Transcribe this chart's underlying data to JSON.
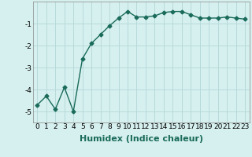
{
  "x": [
    0,
    1,
    2,
    3,
    4,
    5,
    6,
    7,
    8,
    9,
    10,
    11,
    12,
    13,
    14,
    15,
    16,
    17,
    18,
    19,
    20,
    21,
    22,
    23
  ],
  "y": [
    -4.7,
    -4.3,
    -4.9,
    -3.9,
    -5.0,
    -2.6,
    -1.9,
    -1.5,
    -1.1,
    -0.75,
    -0.45,
    -0.7,
    -0.7,
    -0.65,
    -0.5,
    -0.45,
    -0.45,
    -0.6,
    -0.75,
    -0.75,
    -0.75,
    -0.7,
    -0.75,
    -0.8
  ],
  "line_color": "#1a6b5a",
  "marker": "D",
  "marker_size": 2.5,
  "xlabel": "Humidex (Indice chaleur)",
  "xlim": [
    -0.5,
    23.5
  ],
  "ylim": [
    -5.5,
    0.0
  ],
  "yticks": [
    -5,
    -4,
    -3,
    -2,
    -1
  ],
  "xticks": [
    0,
    1,
    2,
    3,
    4,
    5,
    6,
    7,
    8,
    9,
    10,
    11,
    12,
    13,
    14,
    15,
    16,
    17,
    18,
    19,
    20,
    21,
    22,
    23
  ],
  "background_color": "#d6f0ef",
  "grid_color": "#b8dada",
  "font_size": 6.5,
  "xlabel_fontsize": 8.0,
  "line_width": 1.0
}
